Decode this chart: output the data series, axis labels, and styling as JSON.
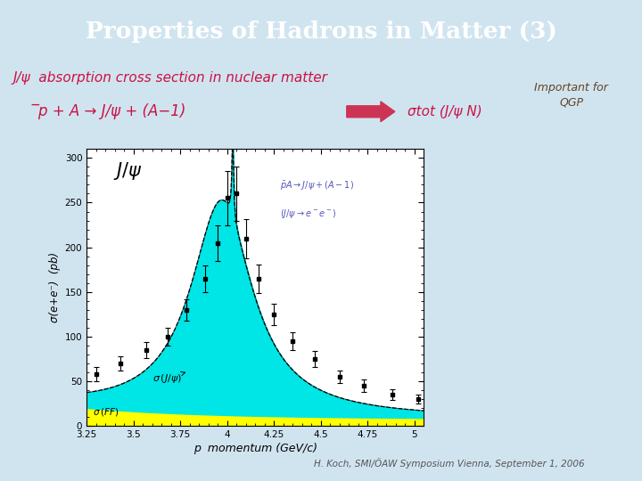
{
  "title": "Properties of Hadrons in Matter (3)",
  "title_bg": "#3a3a9f",
  "title_color": "#ffffff",
  "slide_bg": "#d0e4f0",
  "subtitle_line1": "J/ψ  absorption cross section in nuclear matter",
  "subtitle_line2": "̅p + A → J/ψ + (A−1)",
  "sigma_text": "σtot (J/ψ N)",
  "important_text": "Important for\nQGP",
  "footer": "H. Koch, SMI/ÖAW Symposium Vienna, September 1, 2006",
  "plot_bg": "#ffffff",
  "plot_frame_bg": "#ffffcc",
  "x_min": 3.25,
  "x_max": 5.05,
  "y_min": 0,
  "y_max": 310,
  "xlabel": "p  momentum (GeV/c)",
  "ylabel": "σ(e+e⁻)  (pb)",
  "fill_cyan": "#00e5e5",
  "fill_yellow": "#ffff00",
  "text_color_blue": "#5555bb",
  "text_color_crimson": "#cc1144"
}
